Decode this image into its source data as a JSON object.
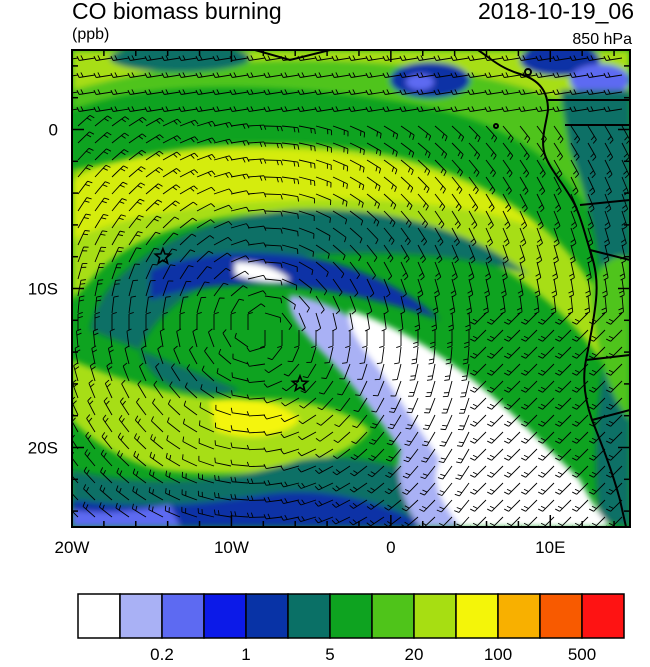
{
  "header": {
    "title_left": "CO biomass burning",
    "title_right": "2018-10-19_06",
    "units": "(ppb)",
    "level": "850 hPa"
  },
  "axes": {
    "x_ticks": [
      "20W",
      "10W",
      "0",
      "10E"
    ],
    "y_ticks": [
      "0",
      "10S",
      "20S"
    ],
    "lon_range": [
      -20,
      15
    ],
    "lat_range": [
      -25,
      5
    ]
  },
  "colorbar": {
    "colors": [
      "#ffffff",
      "#a9b1f5",
      "#5d6af2",
      "#0c1ae8",
      "#0833a6",
      "#0a7066",
      "#0ea320",
      "#4fc41a",
      "#a7de12",
      "#f4f509",
      "#f8b000",
      "#f85a00",
      "#fe1313"
    ],
    "labels": [
      {
        "text": "0.2",
        "after_box": 2
      },
      {
        "text": "1",
        "after_box": 4
      },
      {
        "text": "5",
        "after_box": 6
      },
      {
        "text": "20",
        "after_box": 8
      },
      {
        "text": "100",
        "after_box": 10
      },
      {
        "text": "500",
        "after_box": 12
      }
    ]
  },
  "markers": [
    {
      "name": "star-marker-1",
      "lon": -14.3,
      "lat": -8.0
    },
    {
      "name": "star-marker-2",
      "lon": -5.7,
      "lat": -16.0
    }
  ],
  "fill_colors": {
    "background": "#0ea320",
    "lime": "#a7de12",
    "light_green": "#4fc41a",
    "teal": "#0a7066",
    "dark_blue": "#0833a6",
    "blue": "#0c1ae8",
    "light_blue": "#a9b1f5",
    "white": "#ffffff",
    "yellow": "#f4f509"
  }
}
